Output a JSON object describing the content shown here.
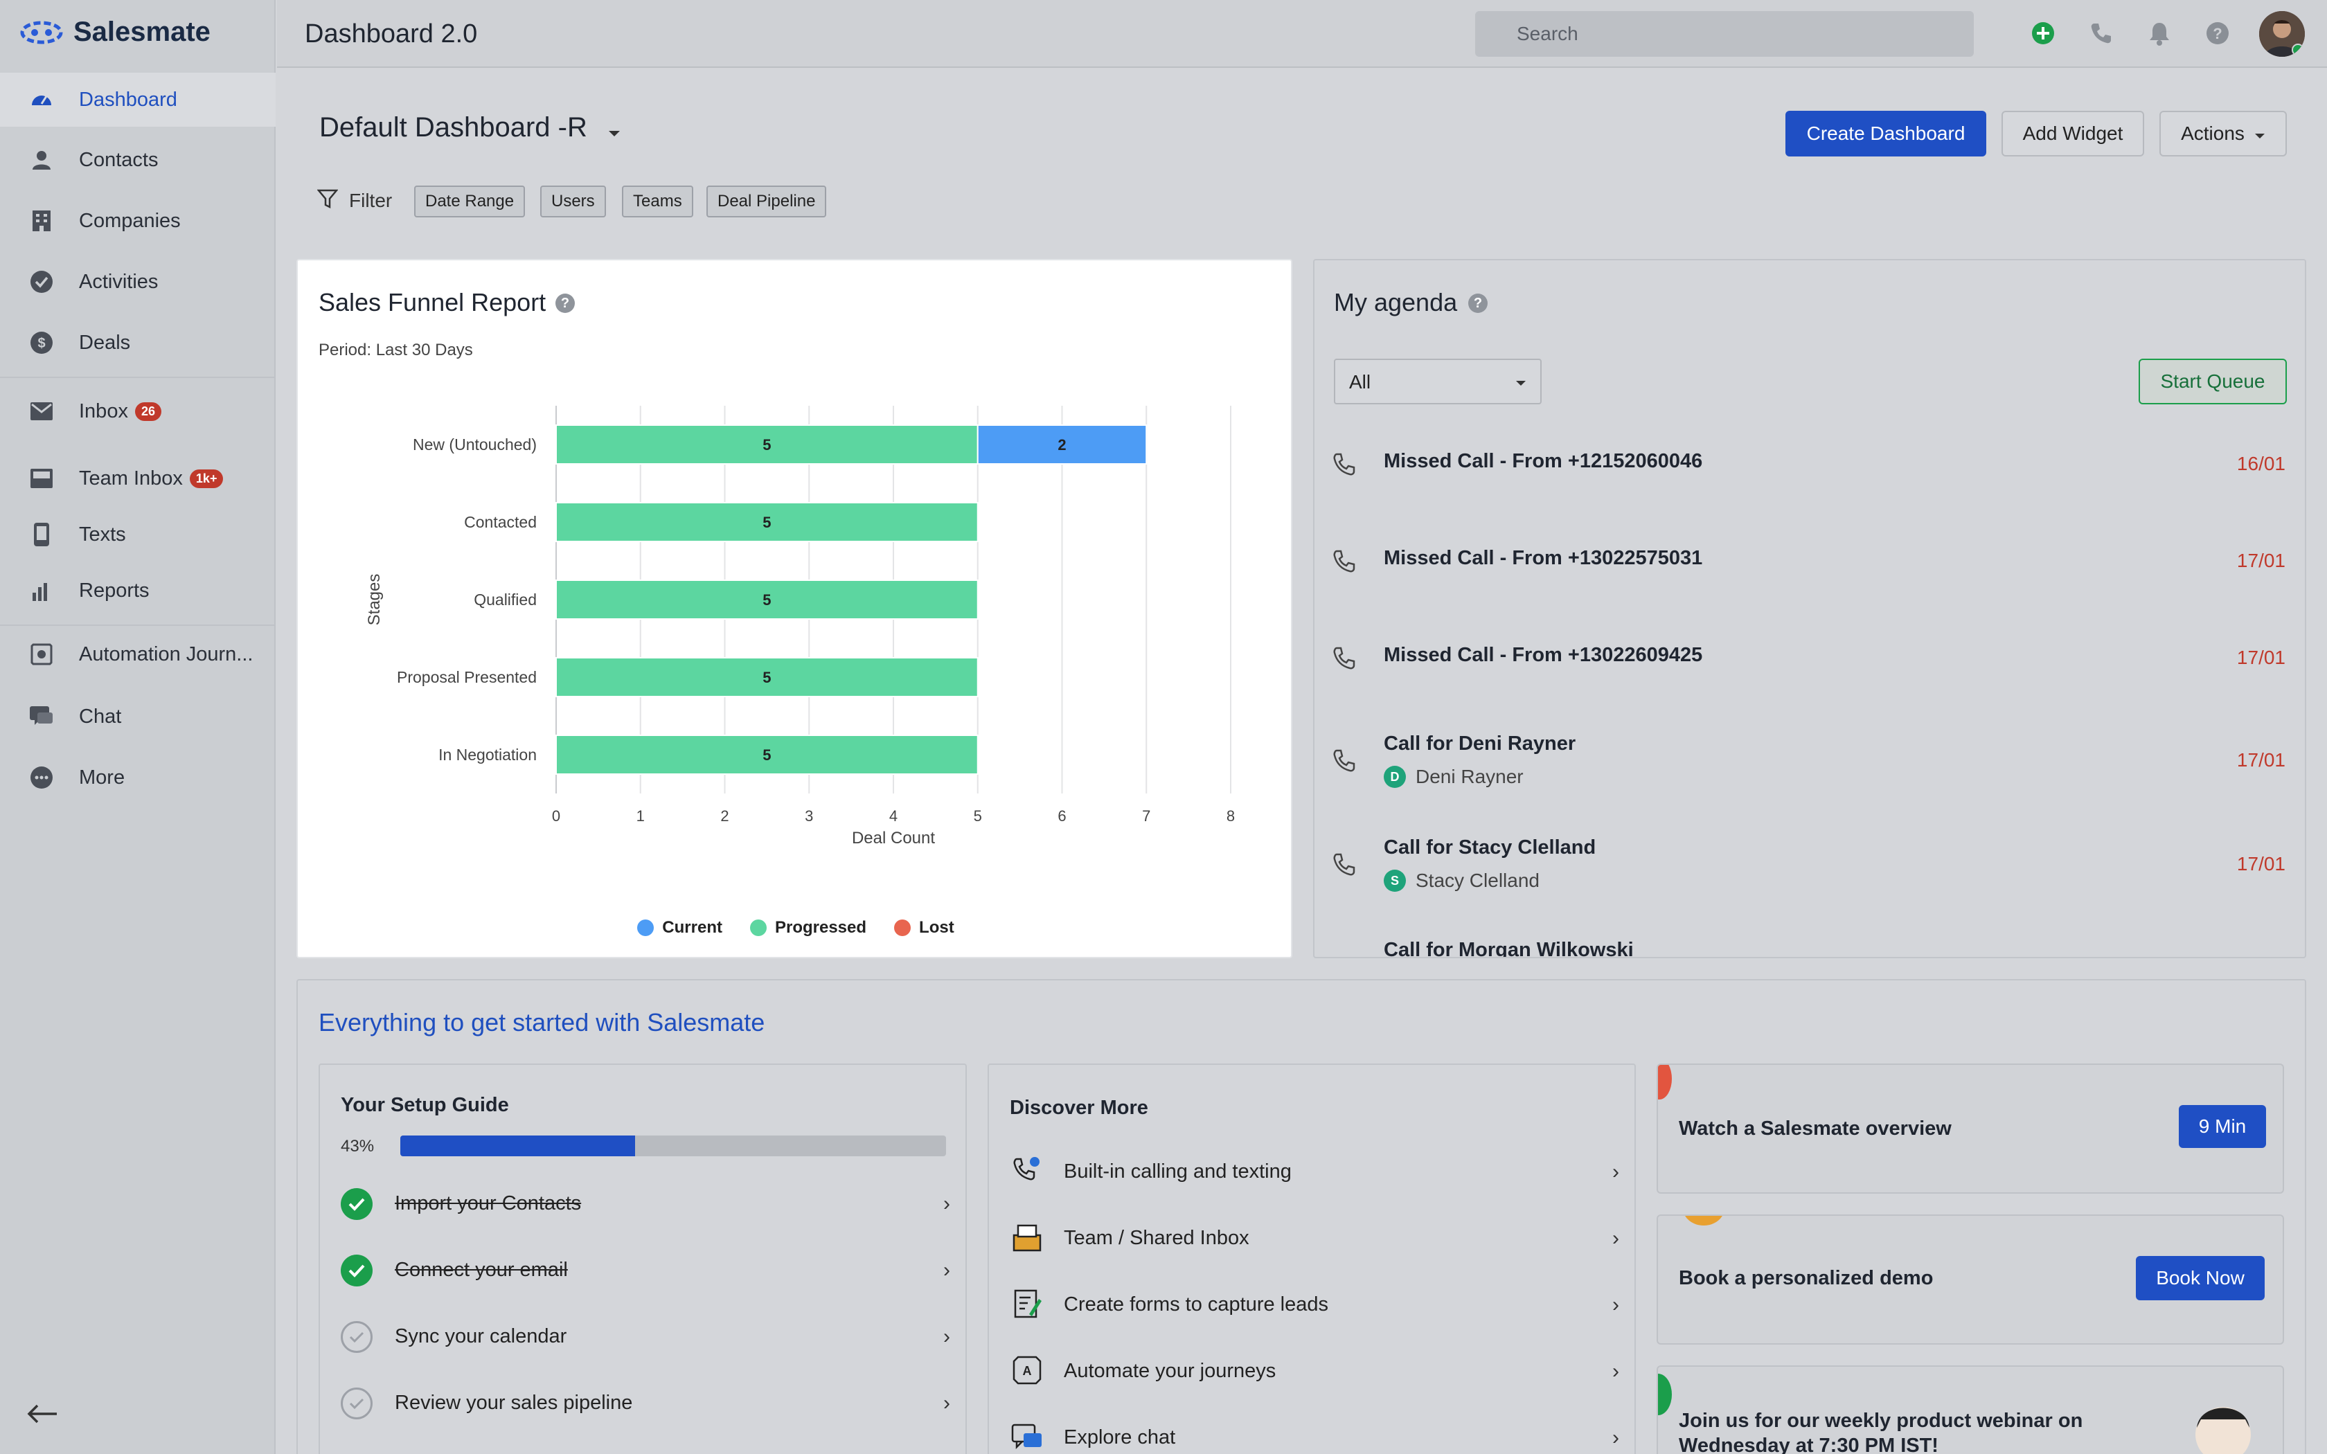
{
  "sidebar": {
    "brand": "Salesmate",
    "items": [
      {
        "label": "Dashboard",
        "icon": "dashboard-icon"
      },
      {
        "label": "Contacts",
        "icon": "person-icon"
      },
      {
        "label": "Companies",
        "icon": "building-icon"
      },
      {
        "label": "Activities",
        "icon": "check-circle-icon"
      },
      {
        "label": "Deals",
        "icon": "dollar-icon"
      },
      {
        "label": "Inbox",
        "icon": "mail-icon",
        "badge": "26"
      },
      {
        "label": "Team Inbox",
        "icon": "team-inbox-icon",
        "badge": "1k+"
      },
      {
        "label": "Texts",
        "icon": "phone-text-icon"
      },
      {
        "label": "Reports",
        "icon": "bar-chart-icon"
      },
      {
        "label": "Automation Journ...",
        "icon": "automation-icon"
      },
      {
        "label": "Chat",
        "icon": "chat-icon"
      },
      {
        "label": "More",
        "icon": "more-icon"
      }
    ]
  },
  "header": {
    "title": "Dashboard 2.0",
    "search_placeholder": "Search"
  },
  "dashboard": {
    "name": "Default Dashboard -R",
    "create_label": "Create Dashboard",
    "add_widget_label": "Add Widget",
    "actions_label": "Actions",
    "filter_label": "Filter",
    "filters": [
      "Date Range",
      "Users",
      "Teams",
      "Deal Pipeline"
    ]
  },
  "funnel": {
    "title": "Sales Funnel Report",
    "period": "Period: Last 30 Days"
  },
  "chart_data": {
    "type": "bar",
    "orientation": "horizontal",
    "stacked": true,
    "categories": [
      "New (Untouched)",
      "Contacted",
      "Qualified",
      "Proposal Presented",
      "In Negotiation"
    ],
    "series": [
      {
        "name": "Progressed",
        "color": "#5cd6a0",
        "values": [
          5,
          5,
          5,
          5,
          5
        ]
      },
      {
        "name": "Current",
        "color": "#4d9cf5",
        "values": [
          2,
          0,
          0,
          0,
          0
        ]
      },
      {
        "name": "Lost",
        "color": "#e8654f",
        "values": [
          0,
          0,
          0,
          0,
          0
        ]
      }
    ],
    "xlabel": "Deal Count",
    "ylabel": "Stages",
    "xlim": [
      0,
      8
    ],
    "xticks": [
      0,
      1,
      2,
      3,
      4,
      5,
      6,
      7,
      8
    ],
    "legend": [
      "Current",
      "Progressed",
      "Lost"
    ],
    "legend_position": "bottom",
    "grid": true
  },
  "agenda": {
    "title": "My agenda",
    "filter_value": "All",
    "start_queue_label": "Start Queue",
    "items": [
      {
        "title": "Missed Call - From +12152060046",
        "date": "16/01"
      },
      {
        "title": "Missed Call - From +13022575031",
        "date": "17/01"
      },
      {
        "title": "Missed Call - From +13022609425",
        "date": "17/01"
      },
      {
        "title": "Call for Deni Rayner",
        "date": "17/01",
        "contact": "Deni Rayner",
        "initial": "D"
      },
      {
        "title": "Call for Stacy Clelland",
        "date": "17/01",
        "contact": "Stacy Clelland",
        "initial": "S"
      },
      {
        "title": "Call for Morgan Wilkowski",
        "date": ""
      }
    ]
  },
  "getting_started": {
    "title": "Everything to get started with Salesmate",
    "setup_guide": {
      "title": "Your Setup Guide",
      "progress_text": "43%",
      "progress": 0.43,
      "steps": [
        {
          "label": "Import your Contacts",
          "done": true
        },
        {
          "label": "Connect your email",
          "done": true
        },
        {
          "label": "Sync your calendar",
          "done": false
        },
        {
          "label": "Review your sales pipeline",
          "done": false
        }
      ]
    },
    "discover": {
      "title": "Discover More",
      "items": [
        {
          "label": "Built-in calling and texting",
          "icon": "calling-icon"
        },
        {
          "label": "Team / Shared Inbox",
          "icon": "shared-inbox-icon"
        },
        {
          "label": "Create forms to capture leads",
          "icon": "form-icon"
        },
        {
          "label": "Automate your journeys",
          "icon": "journey-icon"
        },
        {
          "label": "Explore chat",
          "icon": "chat-bubble-icon"
        }
      ]
    },
    "promos": {
      "overview_label": "Watch a Salesmate overview",
      "overview_badge": "9 Min",
      "demo_label": "Book a personalized demo",
      "demo_button": "Book Now",
      "webinar_label": "Join us for our weekly product webinar on Wednesday at 7:30 PM IST!"
    }
  }
}
